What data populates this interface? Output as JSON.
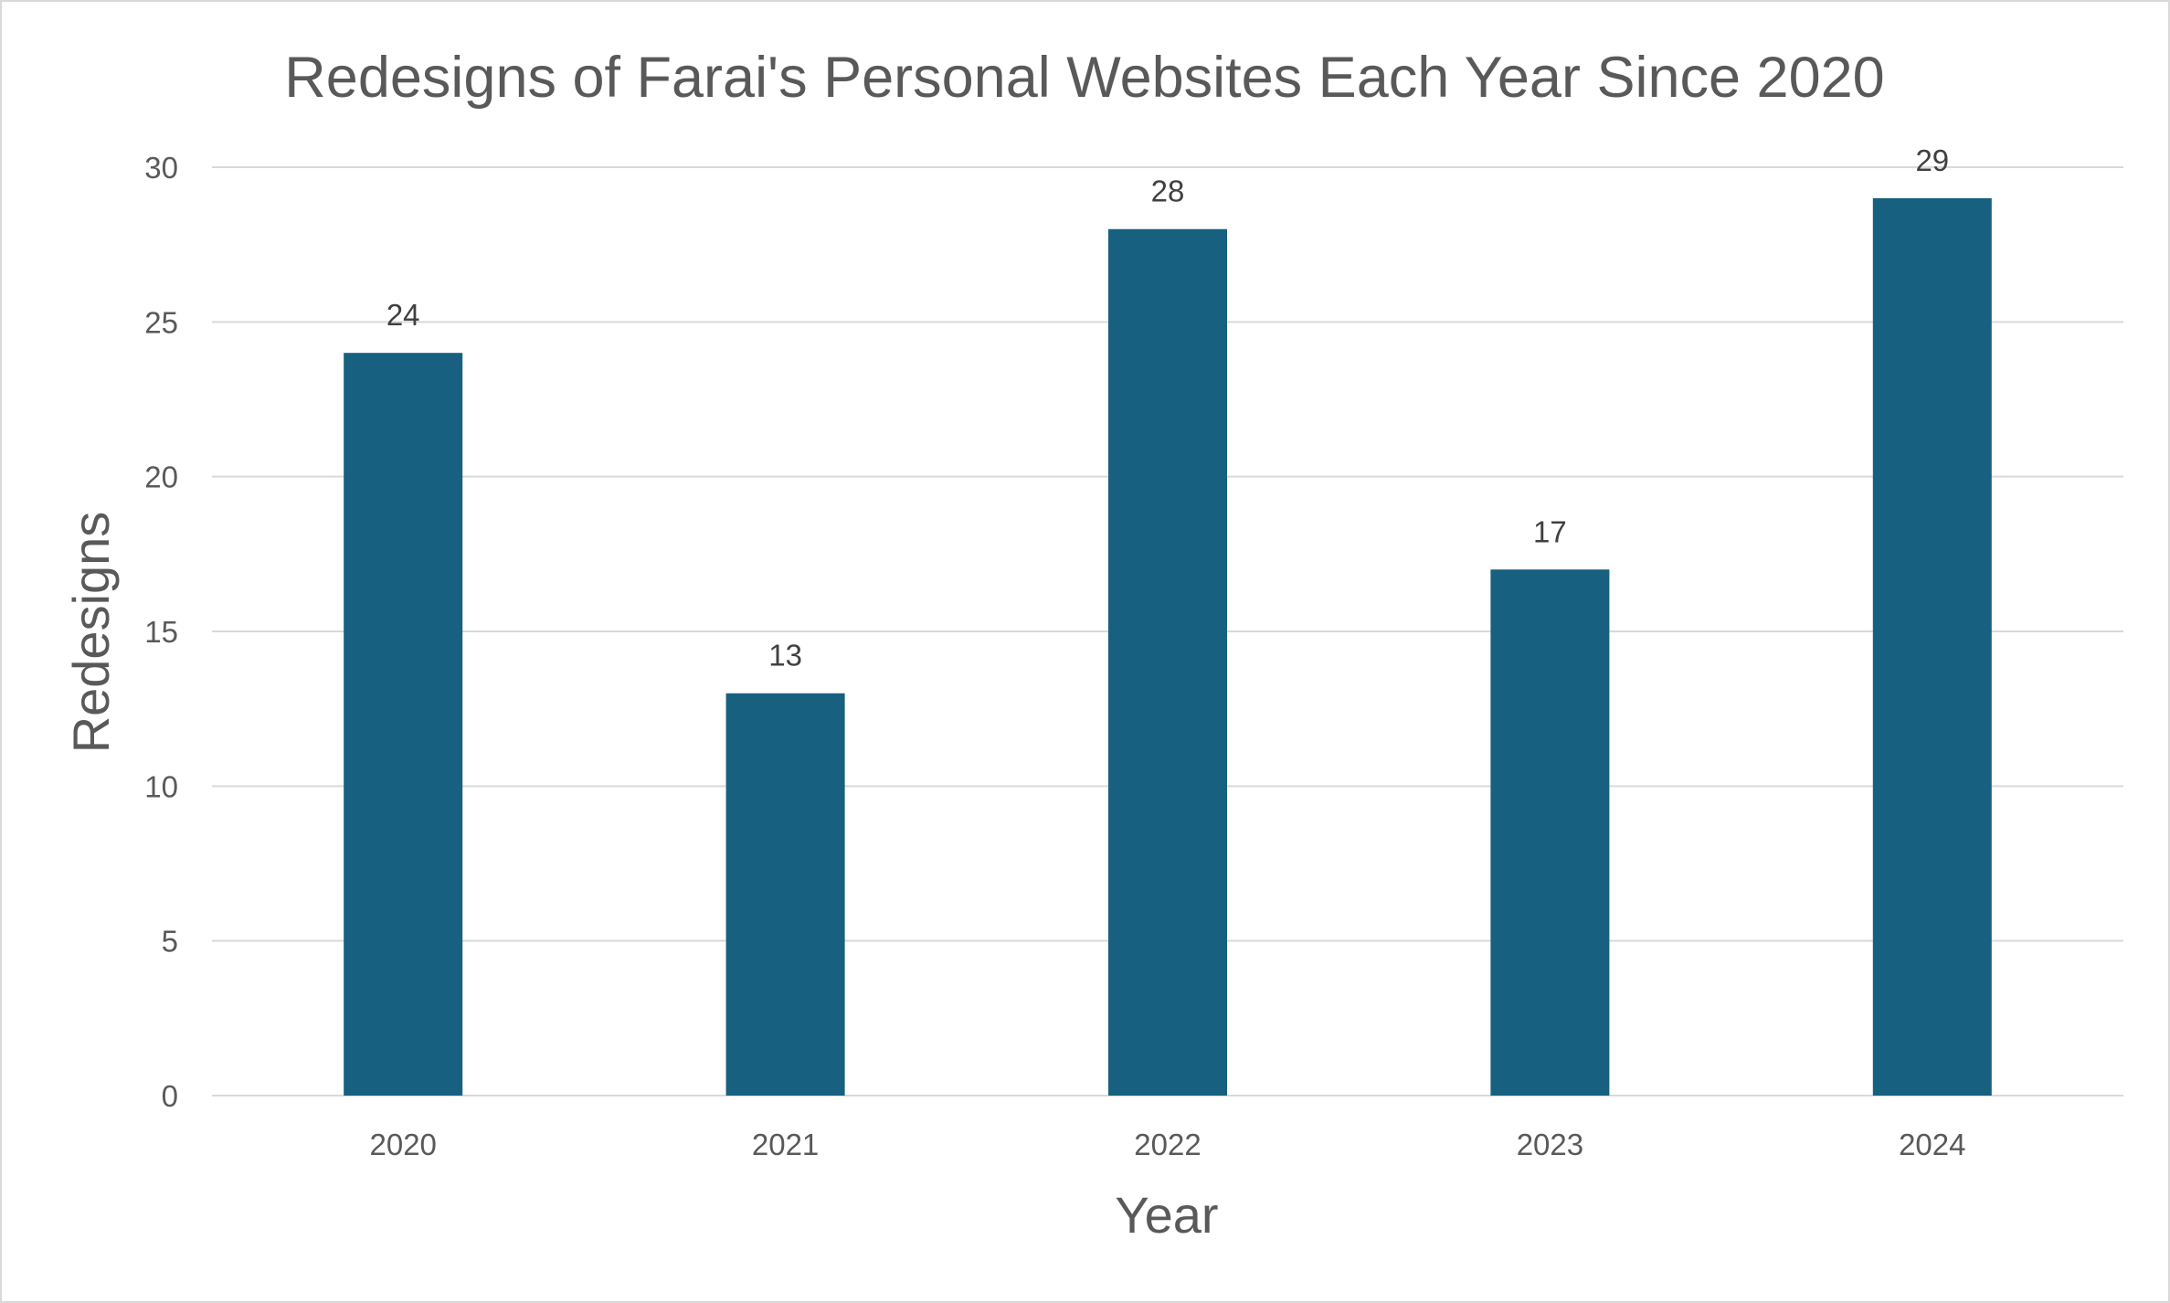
{
  "chart_data": {
    "type": "bar",
    "title": "Redesigns of Farai's Personal Websites Each Year Since 2020",
    "xlabel": "Year",
    "ylabel": "Redesigns",
    "categories": [
      "2020",
      "2021",
      "2022",
      "2023",
      "2024"
    ],
    "values": [
      24,
      13,
      28,
      17,
      29
    ],
    "data_labels": [
      "24",
      "13",
      "28",
      "17",
      "29"
    ],
    "ylim": [
      0,
      30
    ],
    "yticks": [
      0,
      5,
      10,
      15,
      20,
      25,
      30
    ],
    "ytick_labels": [
      "0",
      "5",
      "10",
      "15",
      "20",
      "25",
      "30"
    ],
    "grid": true,
    "legend": "none",
    "colors": {
      "bar": "#17607f",
      "gridline": "#d9d9d9",
      "text": "#595959",
      "data_label": "#404040",
      "border": "#d9d9d9"
    }
  }
}
